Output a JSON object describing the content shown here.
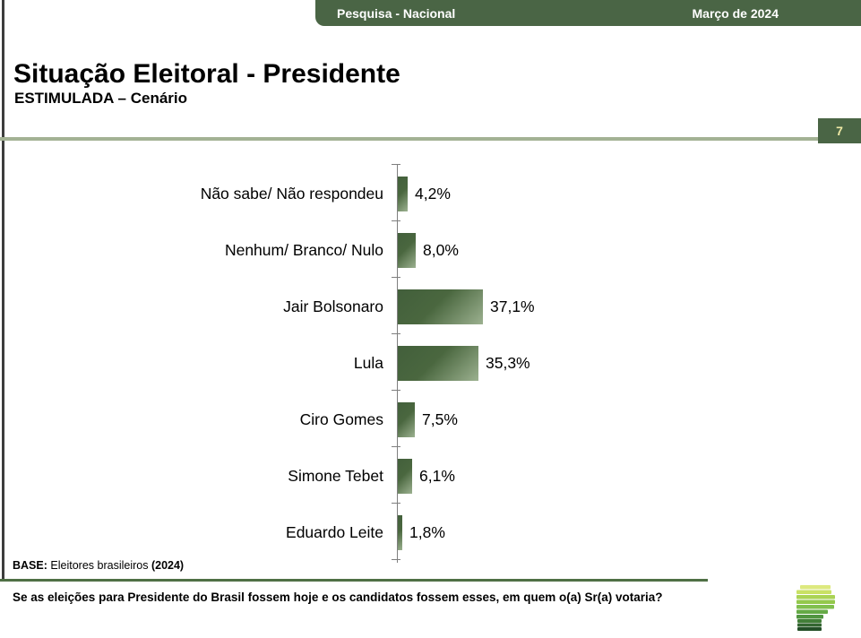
{
  "header": {
    "left": "Pesquisa - Nacional",
    "right": "Março de 2024",
    "bg_color": "#4a6545"
  },
  "page": {
    "title": "Situação Eleitoral - Presidente",
    "subtitle": "ESTIMULADA – Cenário",
    "page_number": "7"
  },
  "chart_data": {
    "type": "bar",
    "orientation": "horizontal",
    "title": "Situação Eleitoral - Presidente (ESTIMULADA – Cenário)",
    "categories": [
      "Não sabe/ Não respondeu",
      "Nenhum/ Branco/ Nulo",
      "Jair Bolsonaro",
      "Lula",
      "Ciro Gomes",
      "Simone Tebet",
      "Eduardo Leite"
    ],
    "values": [
      4.2,
      8.0,
      37.1,
      35.3,
      7.5,
      6.1,
      1.8
    ],
    "value_labels": [
      "4,2%",
      "8,0%",
      "37,1%",
      "35,3%",
      "7,5%",
      "6,1%",
      "1,8%"
    ],
    "unit": "%",
    "xlim": [
      0,
      40
    ],
    "grid": false,
    "legend": false,
    "bar_color_dark": "#425f3b",
    "bar_color_light": "#9cb190"
  },
  "footer": {
    "base_label": "BASE:",
    "base_text": "Eleitores brasileiros",
    "base_year": "(2024)",
    "question": "Se as eleições para Presidente do Brasil fossem hoje e os candidatos fossem esses, em quem o(a) Sr(a) votaria?"
  },
  "logo": {
    "name": "instituto-logo",
    "bar_colors": [
      "#dde97f",
      "#c9e165",
      "#aad355",
      "#93c84c",
      "#80bf4e",
      "#65aa46",
      "#509540",
      "#427e38",
      "#346631",
      "#244f28"
    ]
  }
}
